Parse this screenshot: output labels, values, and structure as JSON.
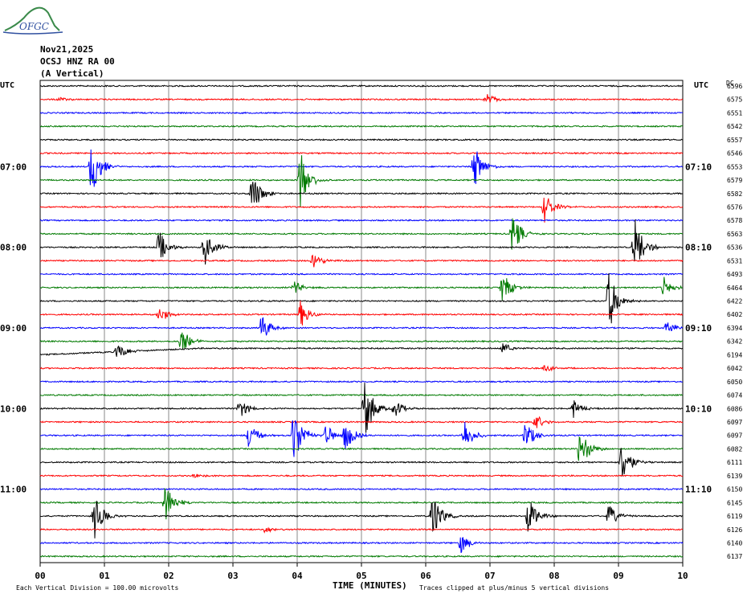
{
  "logo": {
    "text": "OFGC"
  },
  "header": {
    "date": "Nov21,2025",
    "station": "OCSJ HNZ RA 00",
    "component": "(A Vertical)"
  },
  "labels": {
    "left_tz": "UTC",
    "right_tz": "UTC",
    "dc_header": "DC"
  },
  "chart_data": {
    "type": "line",
    "title": "",
    "xlabel": "TIME (MINUTES)",
    "ylabel": "",
    "xlim": [
      0,
      10
    ],
    "x_ticks": [
      "00",
      "01",
      "02",
      "03",
      "04",
      "05",
      "06",
      "07",
      "08",
      "09",
      "10"
    ],
    "grid": true,
    "trace_colors": [
      "#000000",
      "#ff0000",
      "#0000ff",
      "#007a00"
    ],
    "left_hour_labels": [
      {
        "row": 6,
        "label": "07:00"
      },
      {
        "row": 12,
        "label": "08:00"
      },
      {
        "row": 18,
        "label": "09:00"
      },
      {
        "row": 24,
        "label": "10:00"
      },
      {
        "row": 30,
        "label": "11:00"
      }
    ],
    "right_hour_labels": [
      {
        "row": 6,
        "label": "07:10"
      },
      {
        "row": 12,
        "label": "08:10"
      },
      {
        "row": 18,
        "label": "09:10"
      },
      {
        "row": 24,
        "label": "10:10"
      },
      {
        "row": 30,
        "label": "11:10"
      }
    ],
    "dc_offsets": [
      "6596",
      "6575",
      "6551",
      "6542",
      "6557",
      "6546",
      "6553",
      "6579",
      "6582",
      "6576",
      "6578",
      "6563",
      "6536",
      "6531",
      "6493",
      "6464",
      "6422",
      "6402",
      "6394",
      "6342",
      "6194",
      "6042",
      "6050",
      "6074",
      "6086",
      "6097",
      "6097",
      "6082",
      "6111",
      "6139",
      "6150",
      "6145",
      "6119",
      "6126",
      "6140",
      "6137"
    ],
    "events": [
      {
        "row": 1,
        "minute": 6.95,
        "amp": 8
      },
      {
        "row": 1,
        "minute": 0.3,
        "amp": 3
      },
      {
        "row": 6,
        "minute": 0.8,
        "amp": 40
      },
      {
        "row": 6,
        "minute": 6.75,
        "amp": 30
      },
      {
        "row": 7,
        "minute": 4.05,
        "amp": 38
      },
      {
        "row": 8,
        "minute": 3.3,
        "amp": 28
      },
      {
        "row": 9,
        "minute": 7.85,
        "amp": 20
      },
      {
        "row": 11,
        "minute": 7.35,
        "amp": 28
      },
      {
        "row": 12,
        "minute": 1.85,
        "amp": 22
      },
      {
        "row": 12,
        "minute": 2.55,
        "amp": 26
      },
      {
        "row": 12,
        "minute": 9.25,
        "amp": 40
      },
      {
        "row": 13,
        "minute": 4.25,
        "amp": 12
      },
      {
        "row": 15,
        "minute": 7.2,
        "amp": 22
      },
      {
        "row": 15,
        "minute": 9.7,
        "amp": 14
      },
      {
        "row": 15,
        "minute": 3.95,
        "amp": 10
      },
      {
        "row": 16,
        "minute": 8.85,
        "amp": 40
      },
      {
        "row": 17,
        "minute": 1.85,
        "amp": 12
      },
      {
        "row": 17,
        "minute": 4.05,
        "amp": 18
      },
      {
        "row": 18,
        "minute": 3.45,
        "amp": 20
      },
      {
        "row": 18,
        "minute": 9.75,
        "amp": 10
      },
      {
        "row": 19,
        "minute": 2.2,
        "amp": 18
      },
      {
        "row": 20,
        "minute": 1.2,
        "amp": 12
      },
      {
        "row": 20,
        "minute": 7.2,
        "amp": 8
      },
      {
        "row": 21,
        "minute": 7.85,
        "amp": 5
      },
      {
        "row": 24,
        "minute": 3.1,
        "amp": 14
      },
      {
        "row": 24,
        "minute": 5.05,
        "amp": 40
      },
      {
        "row": 24,
        "minute": 5.5,
        "amp": 14
      },
      {
        "row": 24,
        "minute": 8.3,
        "amp": 12
      },
      {
        "row": 25,
        "minute": 7.7,
        "amp": 12
      },
      {
        "row": 26,
        "minute": 3.25,
        "amp": 18
      },
      {
        "row": 26,
        "minute": 3.95,
        "amp": 40
      },
      {
        "row": 26,
        "minute": 4.45,
        "amp": 14
      },
      {
        "row": 26,
        "minute": 4.75,
        "amp": 22
      },
      {
        "row": 26,
        "minute": 6.6,
        "amp": 22
      },
      {
        "row": 26,
        "minute": 7.55,
        "amp": 20
      },
      {
        "row": 27,
        "minute": 8.4,
        "amp": 30
      },
      {
        "row": 28,
        "minute": 9.05,
        "amp": 30
      },
      {
        "row": 29,
        "minute": 2.4,
        "amp": 3
      },
      {
        "row": 31,
        "minute": 1.95,
        "amp": 26
      },
      {
        "row": 32,
        "minute": 0.85,
        "amp": 28
      },
      {
        "row": 32,
        "minute": 6.1,
        "amp": 34
      },
      {
        "row": 32,
        "minute": 7.6,
        "amp": 26
      },
      {
        "row": 32,
        "minute": 8.85,
        "amp": 16
      },
      {
        "row": 33,
        "minute": 3.5,
        "amp": 5
      },
      {
        "row": 34,
        "minute": 6.55,
        "amp": 14
      }
    ],
    "drift_row": 20
  },
  "footer": {
    "scale_note": "Each Vertical Division =  100.00 microvolts",
    "clip_note": "Traces clipped at plus/minus 5 vertical divisions"
  }
}
